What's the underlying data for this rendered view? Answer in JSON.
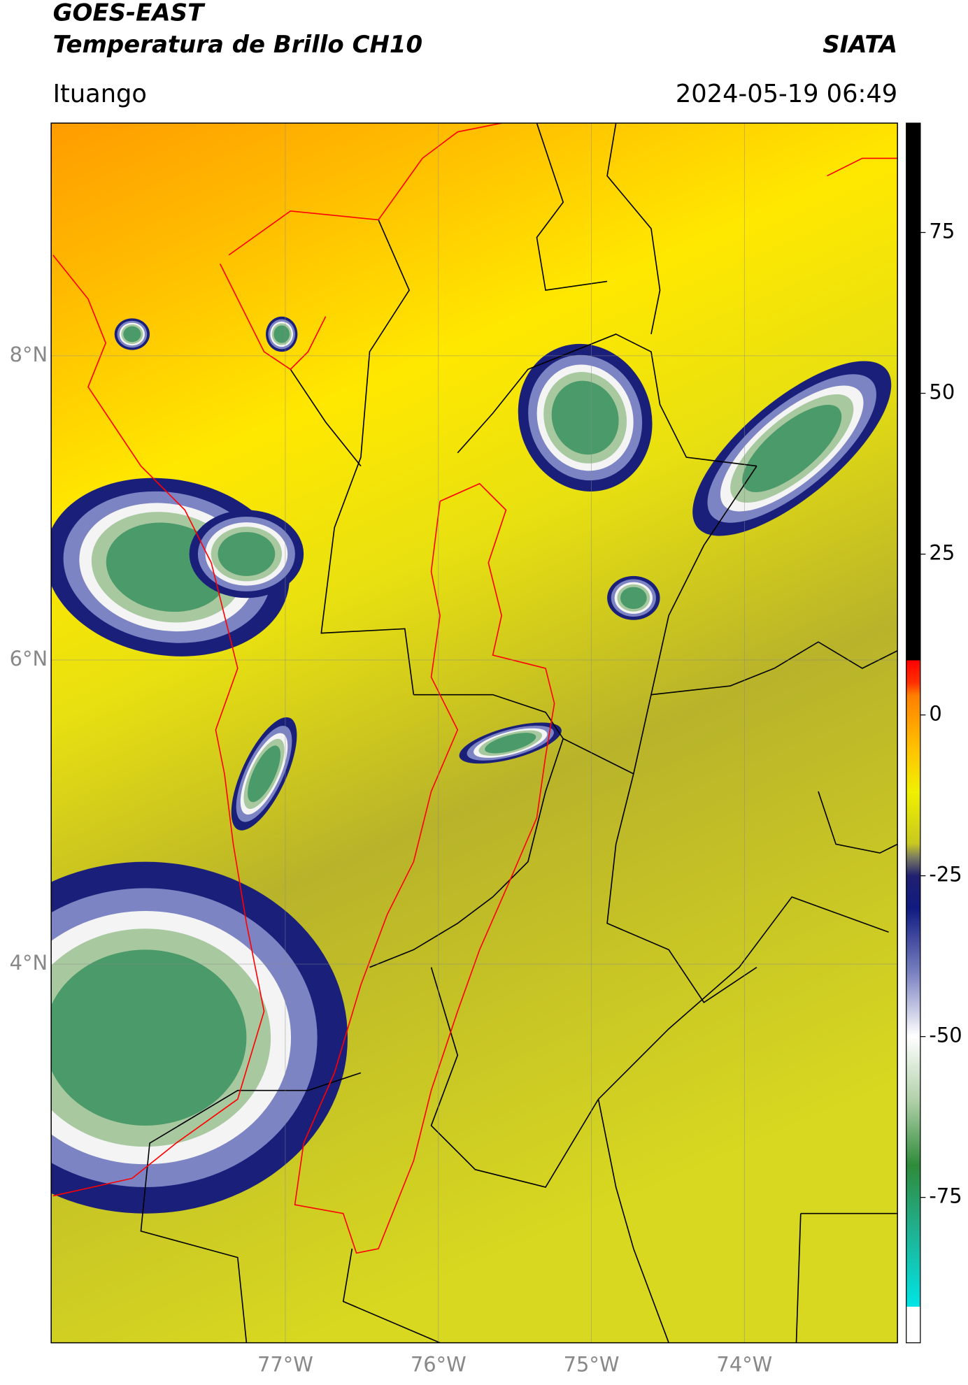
{
  "header": {
    "title": "GOES-EAST",
    "subtitle": "Temperatura de Brillo CH10",
    "source": "SIATA",
    "location": "Ituango",
    "datetime": "2024-05-19 06:49"
  },
  "map": {
    "xlim": [
      -78.53,
      -73.0
    ],
    "ylim": [
      1.51,
      9.53
    ],
    "grid": true,
    "xticks": [
      {
        "value": -77,
        "label": "77°W"
      },
      {
        "value": -76,
        "label": "76°W"
      },
      {
        "value": -75,
        "label": "75°W"
      },
      {
        "value": -74,
        "label": "74°W"
      }
    ],
    "yticks": [
      {
        "value": 8,
        "label": "8°N"
      },
      {
        "value": 6,
        "label": "6°N"
      },
      {
        "value": 4,
        "label": "4°N"
      }
    ]
  },
  "colorbar": {
    "lim": [
      -97.6,
      92
    ],
    "ticks": [
      75,
      50,
      25,
      0,
      -25,
      -50,
      -75
    ],
    "colormap": [
      {
        "value": -97.6,
        "color": "#ffffff"
      },
      {
        "value": -92,
        "color": "#ffffff"
      },
      {
        "value": -92,
        "color": "#00e5e5"
      },
      {
        "value": -80,
        "color": "#20b090"
      },
      {
        "value": -70,
        "color": "#2e8b3a"
      },
      {
        "value": -60,
        "color": "#b0d0a8"
      },
      {
        "value": -50,
        "color": "#ffffff"
      },
      {
        "value": -40,
        "color": "#7880c0"
      },
      {
        "value": -30,
        "color": "#101a80"
      },
      {
        "value": -25,
        "color": "#202070"
      },
      {
        "value": -22,
        "color": "#808060"
      },
      {
        "value": -20,
        "color": "#c8c820"
      },
      {
        "value": -12,
        "color": "#f0f000"
      },
      {
        "value": -5,
        "color": "#ffc000"
      },
      {
        "value": 3,
        "color": "#ff8000"
      },
      {
        "value": 5,
        "color": "#ff3000"
      },
      {
        "value": 8.5,
        "color": "#ff0000"
      },
      {
        "value": 8.5,
        "color": "#000000"
      },
      {
        "value": 92,
        "color": "#000000"
      }
    ]
  }
}
